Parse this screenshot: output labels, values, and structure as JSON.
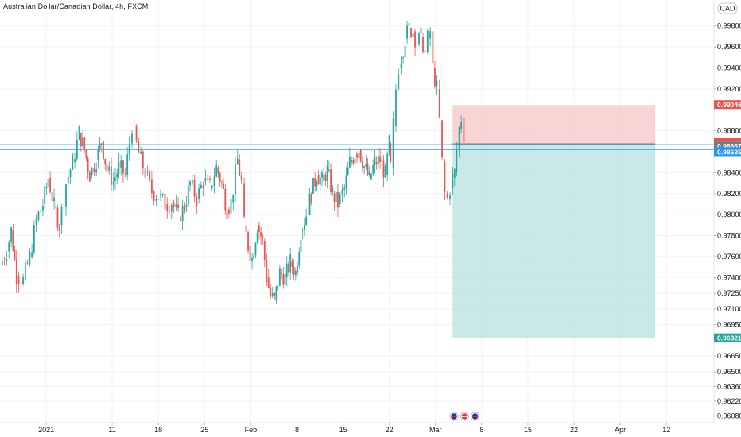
{
  "chart_data": {
    "type": "candlestick",
    "title": "Australian Dollar/Canadian Dollar, 4h, FXCM",
    "currency": "CAD",
    "colors": {
      "up": "#26a69a",
      "down": "#ef5350",
      "grid": "#f0f3fa",
      "crosshair": "#2196f3",
      "stop_zone": "#f7c5c5",
      "target_zone": "#b2dfdb"
    },
    "y_ticks": [
      "0.99800",
      "0.99600",
      "0.99400",
      "0.99200",
      "0.98800",
      "0.98400",
      "0.98200",
      "0.98000",
      "0.97800",
      "0.97600",
      "0.97400",
      "0.97250",
      "0.97100",
      "0.96950",
      "0.96650",
      "0.96500",
      "0.96360",
      "0.96220",
      "0.96080"
    ],
    "y_tick_values": [
      0.998,
      0.996,
      0.994,
      0.992,
      0.988,
      0.984,
      0.982,
      0.98,
      0.978,
      0.976,
      0.974,
      0.9725,
      0.971,
      0.9695,
      0.9665,
      0.965,
      0.9636,
      0.9622,
      0.9608
    ],
    "ylim": [
      0.9603,
      0.99975
    ],
    "x_ticks": [
      "2021",
      "11",
      "18",
      "25",
      "Feb",
      "8",
      "15",
      "22",
      "Mar",
      "8",
      "15",
      "22",
      "Apr",
      "12"
    ],
    "x_tick_days": [
      0,
      10,
      17,
      24,
      31,
      38,
      45,
      52,
      59,
      66,
      73,
      80,
      87,
      94
    ],
    "x_range_days": [
      -7.0,
      101.2
    ],
    "price_labels": {
      "stop_loss": "0.99046",
      "entry": "0.98676",
      "last_price": "0.98667",
      "crosshair": "0.98635",
      "take_profit": "0.96821"
    },
    "price_values": {
      "stop_loss": 0.99046,
      "entry": 0.98676,
      "last_price": 0.98667,
      "crosshair": 0.98635,
      "take_profit": 0.96821
    },
    "position_days": [
      61.6,
      92.3
    ],
    "close_series": [
      {
        "x": -7.0,
        "y": 0.9752
      },
      {
        "x": -6.0,
        "y": 0.9765
      },
      {
        "x": -5.3,
        "y": 0.9785
      },
      {
        "x": -4.5,
        "y": 0.9742
      },
      {
        "x": -3.5,
        "y": 0.9738
      },
      {
        "x": -2.5,
        "y": 0.976
      },
      {
        "x": -1.5,
        "y": 0.9795
      },
      {
        "x": -0.5,
        "y": 0.981
      },
      {
        "x": 0.3,
        "y": 0.9835
      },
      {
        "x": 1.2,
        "y": 0.9808
      },
      {
        "x": 2.0,
        "y": 0.979
      },
      {
        "x": 3.0,
        "y": 0.983
      },
      {
        "x": 4.0,
        "y": 0.985
      },
      {
        "x": 5.0,
        "y": 0.9878
      },
      {
        "x": 5.8,
        "y": 0.9862
      },
      {
        "x": 6.6,
        "y": 0.9838
      },
      {
        "x": 7.6,
        "y": 0.9852
      },
      {
        "x": 8.4,
        "y": 0.987
      },
      {
        "x": 9.2,
        "y": 0.9842
      },
      {
        "x": 10.2,
        "y": 0.9832
      },
      {
        "x": 11.0,
        "y": 0.9845
      },
      {
        "x": 12.0,
        "y": 0.9838
      },
      {
        "x": 12.6,
        "y": 0.9868
      },
      {
        "x": 13.0,
        "y": 0.9885
      },
      {
        "x": 14.0,
        "y": 0.9858
      },
      {
        "x": 15.0,
        "y": 0.984
      },
      {
        "x": 16.0,
        "y": 0.9822
      },
      {
        "x": 17.0,
        "y": 0.9818
      },
      {
        "x": 18.0,
        "y": 0.981
      },
      {
        "x": 19.0,
        "y": 0.9812
      },
      {
        "x": 20.0,
        "y": 0.9798
      },
      {
        "x": 21.0,
        "y": 0.9808
      },
      {
        "x": 21.8,
        "y": 0.983
      },
      {
        "x": 22.8,
        "y": 0.9815
      },
      {
        "x": 23.8,
        "y": 0.9832
      },
      {
        "x": 24.8,
        "y": 0.9826
      },
      {
        "x": 25.8,
        "y": 0.9845
      },
      {
        "x": 26.6,
        "y": 0.983
      },
      {
        "x": 27.4,
        "y": 0.9805
      },
      {
        "x": 28.0,
        "y": 0.9812
      },
      {
        "x": 29.0,
        "y": 0.9852
      },
      {
        "x": 29.6,
        "y": 0.983
      },
      {
        "x": 30.0,
        "y": 0.979
      },
      {
        "x": 30.6,
        "y": 0.977
      },
      {
        "x": 31.2,
        "y": 0.9758
      },
      {
        "x": 32.0,
        "y": 0.979
      },
      {
        "x": 32.8,
        "y": 0.9775
      },
      {
        "x": 33.4,
        "y": 0.974
      },
      {
        "x": 34.0,
        "y": 0.9722
      },
      {
        "x": 34.6,
        "y": 0.9718
      },
      {
        "x": 35.4,
        "y": 0.9745
      },
      {
        "x": 36.2,
        "y": 0.974
      },
      {
        "x": 37.0,
        "y": 0.9755
      },
      {
        "x": 37.8,
        "y": 0.9745
      },
      {
        "x": 38.6,
        "y": 0.9785
      },
      {
        "x": 39.4,
        "y": 0.98
      },
      {
        "x": 40.2,
        "y": 0.982
      },
      {
        "x": 41.0,
        "y": 0.9838
      },
      {
        "x": 41.8,
        "y": 0.9832
      },
      {
        "x": 42.6,
        "y": 0.9842
      },
      {
        "x": 43.4,
        "y": 0.982
      },
      {
        "x": 44.2,
        "y": 0.981
      },
      {
        "x": 45.2,
        "y": 0.9825
      },
      {
        "x": 46.0,
        "y": 0.985
      },
      {
        "x": 46.8,
        "y": 0.9858
      },
      {
        "x": 47.4,
        "y": 0.9862
      },
      {
        "x": 48.2,
        "y": 0.9846
      },
      {
        "x": 49.0,
        "y": 0.9834
      },
      {
        "x": 49.8,
        "y": 0.985
      },
      {
        "x": 50.6,
        "y": 0.9852
      },
      {
        "x": 51.4,
        "y": 0.9838
      },
      {
        "x": 52.0,
        "y": 0.9868
      },
      {
        "x": 52.2,
        "y": 0.9845
      },
      {
        "x": 52.6,
        "y": 0.9885
      },
      {
        "x": 53.0,
        "y": 0.992
      },
      {
        "x": 53.4,
        "y": 0.994
      },
      {
        "x": 53.8,
        "y": 0.995
      },
      {
        "x": 54.4,
        "y": 0.9968
      },
      {
        "x": 55.0,
        "y": 0.9978
      },
      {
        "x": 55.6,
        "y": 0.9975
      },
      {
        "x": 56.2,
        "y": 0.9962
      },
      {
        "x": 56.8,
        "y": 0.997
      },
      {
        "x": 57.4,
        "y": 0.9955
      },
      {
        "x": 57.8,
        "y": 0.9968
      },
      {
        "x": 58.2,
        "y": 0.9975
      },
      {
        "x": 58.6,
        "y": 0.994
      },
      {
        "x": 59.2,
        "y": 0.992
      },
      {
        "x": 59.6,
        "y": 0.989
      },
      {
        "x": 60.0,
        "y": 0.985
      },
      {
        "x": 60.4,
        "y": 0.982
      },
      {
        "x": 60.8,
        "y": 0.9815
      },
      {
        "x": 61.2,
        "y": 0.9825
      },
      {
        "x": 61.6,
        "y": 0.9835
      },
      {
        "x": 61.9,
        "y": 0.984
      },
      {
        "x": 62.2,
        "y": 0.9862
      },
      {
        "x": 62.6,
        "y": 0.9882
      },
      {
        "x": 62.9,
        "y": 0.9892
      },
      {
        "x": 63.3,
        "y": 0.9876
      }
    ]
  }
}
